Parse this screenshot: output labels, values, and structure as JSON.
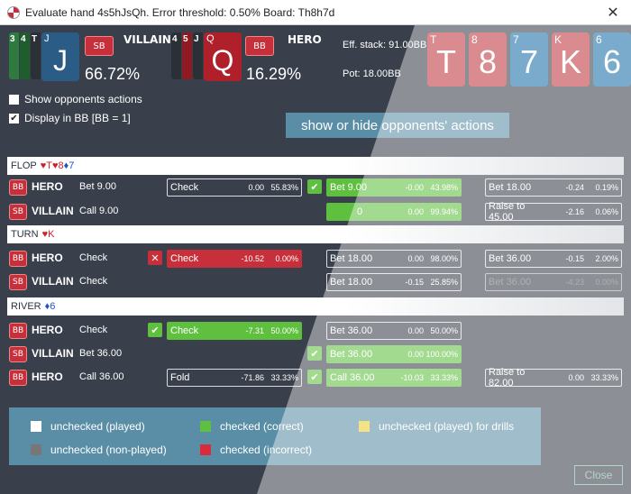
{
  "window": {
    "title": "Evaluate hand 4s5hJsQh. Error threshold: 0.50% Board: Th8h7d",
    "close_glyph": "✕"
  },
  "villain": {
    "cards": [
      "3",
      "4",
      "T",
      "J"
    ],
    "big": "J",
    "pos": "SB",
    "name": "VILLAIN",
    "equity": "66.72%"
  },
  "hero": {
    "cards": [
      "4",
      "5",
      "J",
      "Q"
    ],
    "big": "Q",
    "pos": "BB",
    "name": "HERO",
    "equity": "16.29%"
  },
  "stats": {
    "eff_stack": "Eff. stack: 91.00BB",
    "pot": "Pot: 18.00BB"
  },
  "board": [
    {
      "corner": "T",
      "rank": "T",
      "color": "#c0373f"
    },
    {
      "corner": "8",
      "rank": "8",
      "color": "#c0373f"
    },
    {
      "corner": "7",
      "rank": "7",
      "color": "#1d6fa8"
    },
    {
      "corner": "K",
      "rank": "K",
      "color": "#c0373f"
    },
    {
      "corner": "6",
      "rank": "6",
      "color": "#1d6fa8"
    }
  ],
  "options": {
    "show_opponents": {
      "label": "Show opponents actions",
      "checked": false
    },
    "display_bb": {
      "label": "Display in BB [BB = 1]",
      "checked": true
    }
  },
  "tooltip": "show or hide opponents' actions",
  "streets": {
    "flop": {
      "name": "FLOP",
      "cards": "♥T♥8♦7"
    },
    "turn": {
      "name": "TURN",
      "cards": "♥K"
    },
    "river": {
      "name": "RIVER",
      "cards": "♦6"
    }
  },
  "rows": [
    {
      "pos": "BB",
      "name": "HERO",
      "action": "Bet 9.00"
    },
    {
      "pos": "SB",
      "name": "VILLAIN",
      "action": "Call 9.00"
    },
    {
      "pos": "BB",
      "name": "HERO",
      "action": "Check"
    },
    {
      "pos": "SB",
      "name": "VILLAIN",
      "action": "Check"
    },
    {
      "pos": "BB",
      "name": "HERO",
      "action": "Check"
    },
    {
      "pos": "SB",
      "name": "VILLAIN",
      "action": "Bet 36.00"
    },
    {
      "pos": "BB",
      "name": "HERO",
      "action": "Call 36.00"
    }
  ],
  "opts": {
    "r0a": {
      "label": "Check",
      "ev": "0.00",
      "freq": "55.83%"
    },
    "r0b": {
      "label": "Bet 9.00",
      "ev": "-0.00",
      "freq": "43.98%"
    },
    "r0c": {
      "label": "Bet 18.00",
      "ev": "-0.24",
      "freq": "0.19%"
    },
    "r1b": {
      "label": "0",
      "ev": "0.00",
      "freq": "99.94%"
    },
    "r1c": {
      "label": "Raise to 45.00",
      "ev": "-2.16",
      "freq": "0.06%"
    },
    "r2a": {
      "label": "Check",
      "ev": "-10.52",
      "freq": "0.00%"
    },
    "r2b": {
      "label": "Bet 18.00",
      "ev": "0.00",
      "freq": "98.00%"
    },
    "r2c": {
      "label": "Bet 36.00",
      "ev": "-0.15",
      "freq": "2.00%"
    },
    "r3b": {
      "label": "Bet 18.00",
      "ev": "-0.15",
      "freq": "25.85%"
    },
    "r3c": {
      "label": "Bet 36.00",
      "ev": "-4.23",
      "freq": "0.00%"
    },
    "r4a": {
      "label": "Check",
      "ev": "-7.31",
      "freq": "50.00%"
    },
    "r4b": {
      "label": "Bet 36.00",
      "ev": "0.00",
      "freq": "50.00%"
    },
    "r5b": {
      "label": "Bet 36.00",
      "ev": "0.00",
      "freq": "100.00%"
    },
    "r6a": {
      "label": "Fold",
      "ev": "-71.86",
      "freq": "33.33%"
    },
    "r6b": {
      "label": "Call 36.00",
      "ev": "-10.03",
      "freq": "33.33%"
    },
    "r6c": {
      "label": "Raise to 82.00",
      "ev": "0.00",
      "freq": "33.33%"
    }
  },
  "legend": {
    "played": "unchecked (played)",
    "correct": "checked (correct)",
    "drills": "unchecked (played) for drills",
    "nonplayed": "unchecked (non-played)",
    "incorrect": "checked (incorrect)"
  },
  "colors": {
    "white": "#ffffff",
    "green": "#5fbf3f",
    "yellow": "#e8cf2f",
    "gray": "#777777",
    "red": "#d82c3c"
  },
  "close_button": "Close"
}
